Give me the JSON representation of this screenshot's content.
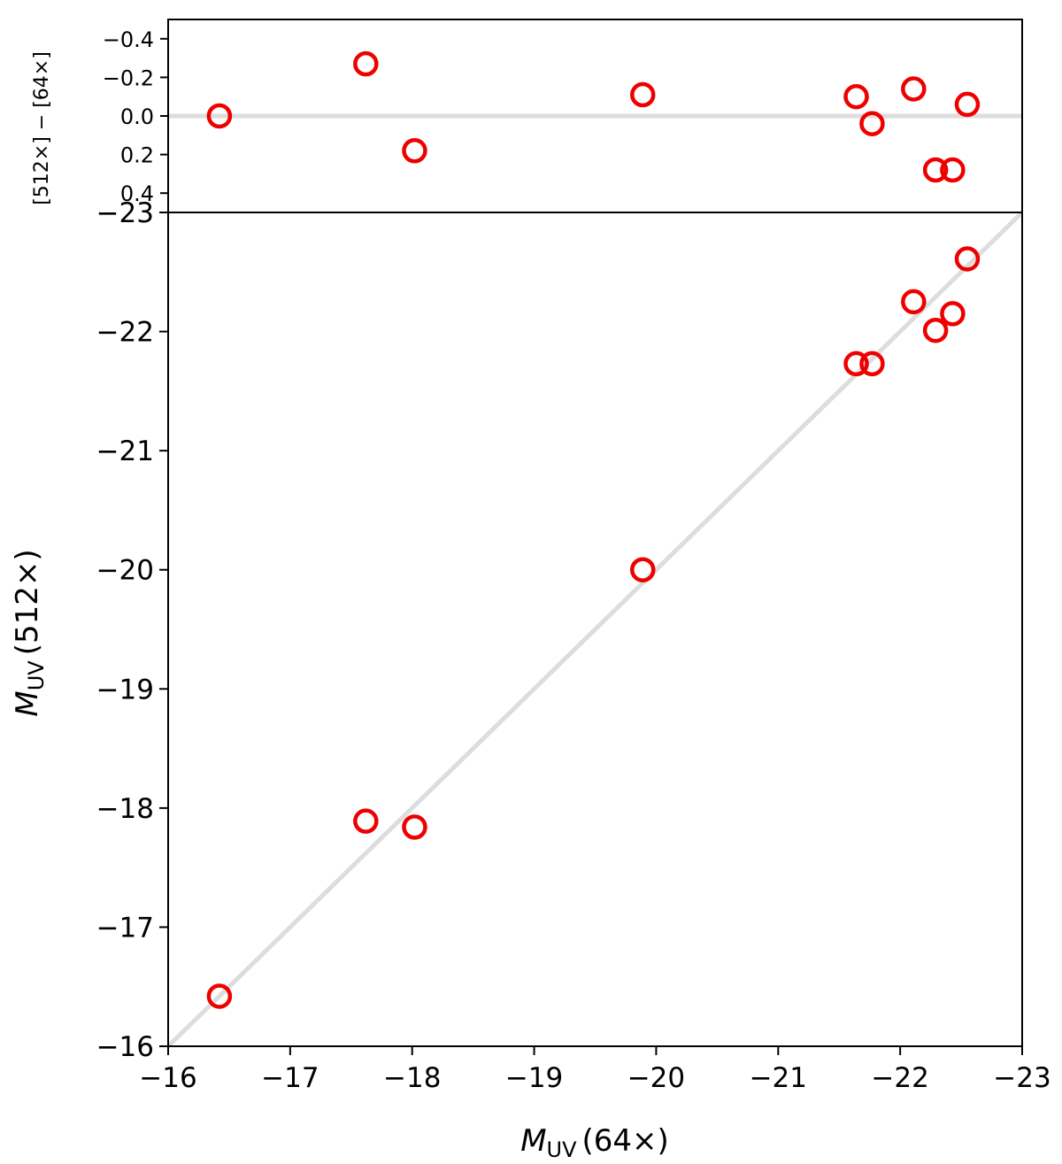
{
  "chart_data": [
    {
      "type": "scatter",
      "panel": "residual",
      "title": "",
      "xlabel": "",
      "ylabel": "[512×] − [64×]",
      "xlim": [
        -16,
        -23
      ],
      "ylim": [
        0.5,
        -0.5
      ],
      "yticks": [
        "−0.4",
        "−0.2",
        "0.0",
        "0.2",
        "0.4"
      ],
      "reference_line": {
        "y": 0.0,
        "color": "#dddddd"
      },
      "grid": false,
      "marker": {
        "shape": "open-circle",
        "color": "#ee0000"
      },
      "points": [
        {
          "x": -16.42,
          "y": 0.0
        },
        {
          "x": -17.62,
          "y": -0.27
        },
        {
          "x": -18.02,
          "y": 0.18
        },
        {
          "x": -19.89,
          "y": -0.11
        },
        {
          "x": -21.64,
          "y": -0.1
        },
        {
          "x": -21.77,
          "y": 0.04
        },
        {
          "x": -22.11,
          "y": -0.14
        },
        {
          "x": -22.29,
          "y": 0.28
        },
        {
          "x": -22.43,
          "y": 0.28
        },
        {
          "x": -22.55,
          "y": -0.06
        }
      ]
    },
    {
      "type": "scatter",
      "panel": "main",
      "title": "",
      "xlabel": "M_UV (64×)",
      "ylabel": "M_UV (512×)",
      "xlabel_parts": {
        "symbol": "M",
        "sub": "UV",
        "rest": "(64×)"
      },
      "ylabel_parts": {
        "symbol": "M",
        "sub": "UV",
        "rest": "(512×)"
      },
      "xlim": [
        -16,
        -23
      ],
      "ylim": [
        -16,
        -23
      ],
      "xticks": [
        "−16",
        "−17",
        "−18",
        "−19",
        "−20",
        "−21",
        "−22",
        "−23"
      ],
      "yticks": [
        "−16",
        "−17",
        "−18",
        "−19",
        "−20",
        "−21",
        "−22",
        "−23"
      ],
      "reference_line": {
        "type": "one-to-one",
        "color": "#dddddd"
      },
      "grid": false,
      "marker": {
        "shape": "open-circle",
        "color": "#ee0000"
      },
      "points": [
        {
          "x": -16.42,
          "y": -16.42
        },
        {
          "x": -17.62,
          "y": -17.89
        },
        {
          "x": -18.02,
          "y": -17.84
        },
        {
          "x": -19.89,
          "y": -20.0
        },
        {
          "x": -21.64,
          "y": -21.73
        },
        {
          "x": -21.77,
          "y": -21.73
        },
        {
          "x": -22.11,
          "y": -22.25
        },
        {
          "x": -22.29,
          "y": -22.01
        },
        {
          "x": -22.43,
          "y": -22.15
        },
        {
          "x": -22.55,
          "y": -22.61
        }
      ]
    }
  ]
}
